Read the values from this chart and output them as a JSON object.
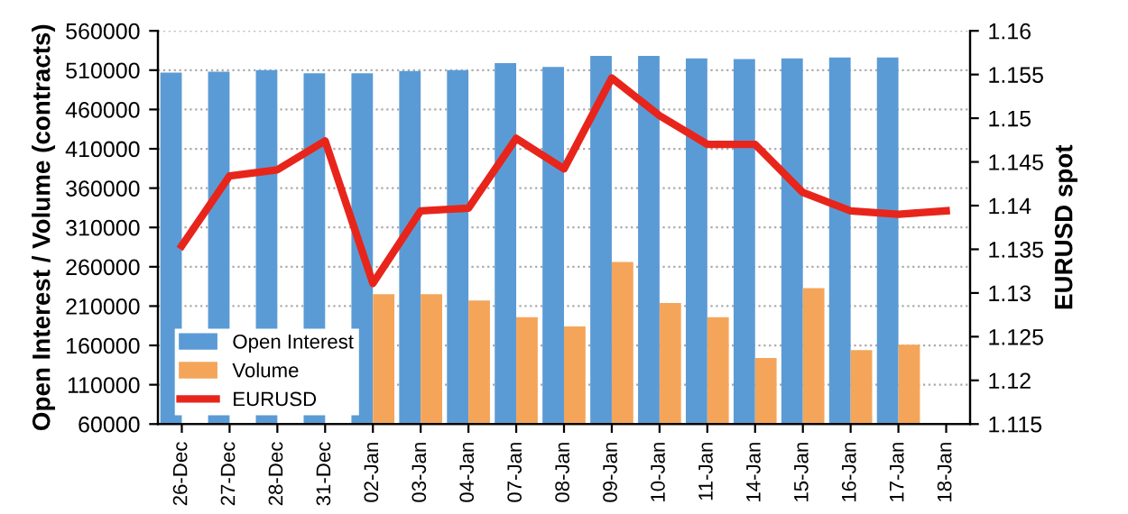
{
  "chart_data": {
    "type": "bar",
    "categories": [
      "26-Dec",
      "27-Dec",
      "28-Dec",
      "31-Dec",
      "02-Jan",
      "03-Jan",
      "04-Jan",
      "07-Jan",
      "08-Jan",
      "09-Jan",
      "10-Jan",
      "11-Jan",
      "14-Jan",
      "15-Jan",
      "16-Jan",
      "17-Jan",
      "18-Jan"
    ],
    "ylabel": "Open Interest / Volume (contracts)",
    "y2label": "EURUSD spot",
    "ylim": [
      60000,
      560000
    ],
    "yticks": [
      60000,
      110000,
      160000,
      210000,
      260000,
      310000,
      360000,
      410000,
      460000,
      510000,
      560000
    ],
    "y2lim": [
      1.115,
      1.16
    ],
    "y2ticks": [
      1.115,
      1.12,
      1.125,
      1.13,
      1.135,
      1.14,
      1.145,
      1.15,
      1.155,
      1.16
    ],
    "grid": "y",
    "legend": "bottom left",
    "series": [
      {
        "name": "Open Interest",
        "color": "#5b9bd5",
        "values": [
          507000,
          508000,
          510000,
          506000,
          506000,
          509000,
          510000,
          519000,
          514000,
          528000,
          528000,
          525000,
          524000,
          525000,
          526000,
          526000,
          null
        ]
      },
      {
        "name": "Volume",
        "color": "#f4a55a",
        "values": [
          null,
          null,
          null,
          null,
          225000,
          225000,
          217000,
          196000,
          184000,
          266000,
          214000,
          196000,
          144000,
          233000,
          154000,
          161000,
          null
        ]
      },
      {
        "name": "EURUSD",
        "type": "line",
        "axis": "y2",
        "color": "#e8251b",
        "line_style": "solid",
        "marker": "none",
        "values": [
          1.1354,
          1.1434,
          1.1441,
          1.1474,
          1.1311,
          1.1394,
          1.1397,
          1.1477,
          1.1442,
          1.1546,
          1.1503,
          1.147,
          1.147,
          1.1415,
          1.1394,
          1.139,
          1.1394
        ]
      }
    ]
  }
}
